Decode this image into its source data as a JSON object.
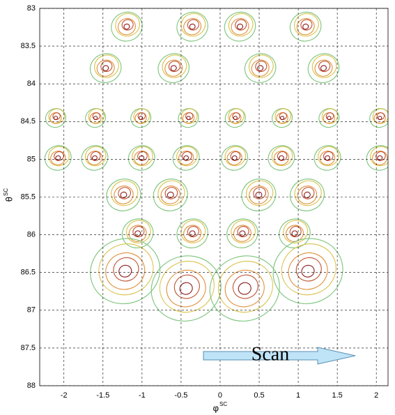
{
  "chart_data": {
    "type": "contour",
    "x_label": "φ",
    "x_label_sup": "SC",
    "y_label": "θ",
    "y_label_sup": "SC",
    "xlim": [
      -2.31,
      2.15
    ],
    "ylim": [
      83,
      88
    ],
    "y_inverted": true,
    "grid": true,
    "xticks": [
      -2,
      -1.5,
      -1,
      -0.5,
      0,
      0.5,
      1,
      1.5,
      2
    ],
    "yticks": [
      83,
      83.5,
      84,
      84.5,
      85,
      85.5,
      86,
      86.5,
      87,
      87.5,
      88
    ],
    "contour_colors": [
      "#7cc47c",
      "#d9c24a",
      "#e0903a",
      "#c05030",
      "#8b1a1a"
    ],
    "x": [
      -1.19,
      -0.35,
      0.26,
      1.1,
      -1.46,
      -0.59,
      0.52,
      1.33,
      -2.1,
      -1.59,
      -1.01,
      -0.4,
      0.2,
      0.8,
      1.4,
      2.05,
      -2.07,
      -1.6,
      -1.0,
      -0.43,
      0.19,
      0.79,
      1.38,
      2.05,
      -1.23,
      -0.63,
      0.5,
      1.12,
      -1.05,
      -0.35,
      0.29,
      0.96,
      -1.21,
      1.13,
      -0.43,
      0.32
    ],
    "y": [
      83.23,
      83.23,
      83.23,
      83.23,
      83.78,
      83.78,
      83.78,
      83.78,
      84.44,
      84.44,
      84.44,
      84.44,
      84.44,
      84.44,
      84.44,
      84.44,
      84.97,
      84.97,
      84.97,
      84.97,
      84.97,
      84.97,
      84.97,
      84.97,
      85.46,
      85.46,
      85.46,
      85.46,
      85.97,
      85.97,
      85.97,
      85.97,
      86.47,
      86.47,
      86.7,
      86.7
    ],
    "sizes": [
      0.2,
      0.2,
      0.2,
      0.2,
      0.2,
      0.2,
      0.2,
      0.2,
      0.13,
      0.13,
      0.13,
      0.13,
      0.13,
      0.13,
      0.13,
      0.13,
      0.17,
      0.17,
      0.17,
      0.17,
      0.17,
      0.17,
      0.17,
      0.17,
      0.22,
      0.22,
      0.22,
      0.22,
      0.2,
      0.2,
      0.2,
      0.2,
      0.45,
      0.45,
      0.45,
      0.45
    ],
    "annotation": "Scan"
  }
}
